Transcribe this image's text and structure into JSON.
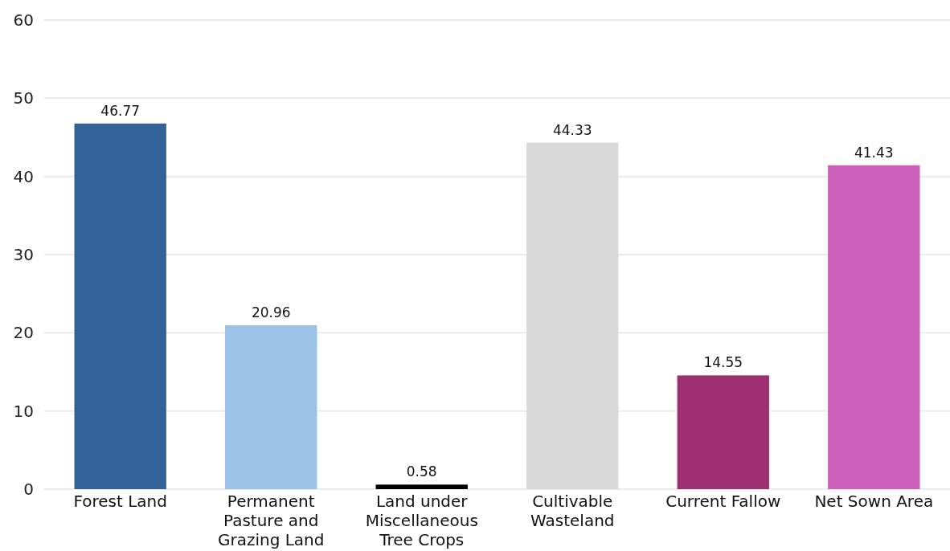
{
  "chart_data": {
    "type": "bar",
    "categories": [
      "Forest Land",
      "Permanent Pasture and Grazing Land",
      "Land under Miscellaneous Tree Crops",
      "Cultivable Wasteland",
      "Current Fallow",
      "Net Sown Area"
    ],
    "values": [
      46.77,
      20.96,
      0.58,
      44.33,
      14.55,
      41.43
    ],
    "colors": [
      "#336299",
      "#9bc2e6",
      "#000000",
      "#d9d9d9",
      "#9e2f72",
      "#cd60bb"
    ],
    "ylim": [
      0,
      60
    ],
    "yticks": [
      0,
      10,
      20,
      30,
      40,
      50,
      60
    ],
    "grid": "y",
    "data_labels": true
  }
}
